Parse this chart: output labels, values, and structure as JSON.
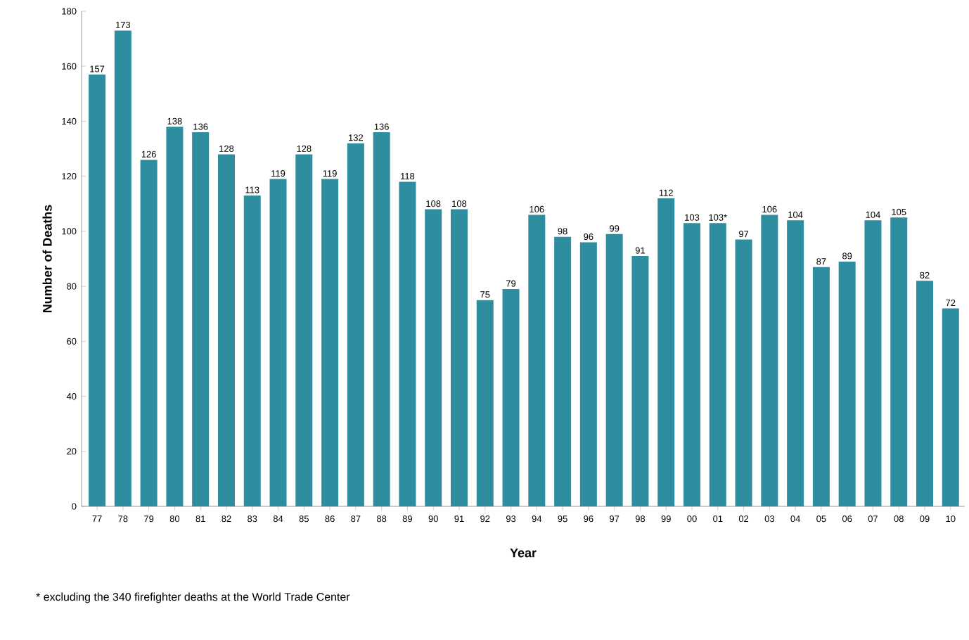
{
  "chart_data": {
    "type": "bar",
    "xlabel": "Year",
    "ylabel": "Number of Deaths",
    "categories": [
      "77",
      "78",
      "79",
      "80",
      "81",
      "82",
      "83",
      "84",
      "85",
      "86",
      "87",
      "88",
      "89",
      "90",
      "91",
      "92",
      "93",
      "94",
      "95",
      "96",
      "97",
      "98",
      "99",
      "00",
      "01",
      "02",
      "03",
      "04",
      "05",
      "06",
      "07",
      "08",
      "09",
      "10"
    ],
    "values": [
      157,
      173,
      126,
      138,
      136,
      128,
      113,
      119,
      128,
      119,
      132,
      136,
      118,
      108,
      108,
      75,
      79,
      106,
      98,
      96,
      99,
      91,
      112,
      103,
      103,
      97,
      106,
      104,
      87,
      89,
      104,
      105,
      82,
      72
    ],
    "value_labels": [
      "157",
      "173",
      "126",
      "138",
      "136",
      "128",
      "113",
      "119",
      "128",
      "119",
      "132",
      "136",
      "118",
      "108",
      "108",
      "75",
      "79",
      "106",
      "98",
      "96",
      "99",
      "91",
      "112",
      "103",
      "103*",
      "97",
      "106",
      "104",
      "87",
      "89",
      "104",
      "105",
      "82",
      "72"
    ],
    "color": "#2e8ea0",
    "ylim": [
      0,
      180
    ],
    "yticks": [
      0,
      20,
      40,
      60,
      80,
      100,
      120,
      140,
      160,
      180
    ],
    "grid": false,
    "annotations": [
      "*  excluding the 340 firefighter deaths at the World Trade Center"
    ]
  }
}
